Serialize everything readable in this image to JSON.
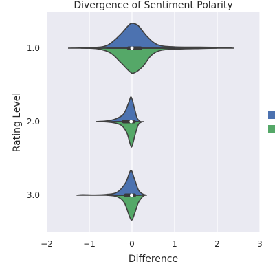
{
  "chart_data": {
    "type": "violin",
    "orientation": "horizontal",
    "split": true,
    "title": "Divergence of Sentiment Polarity",
    "xlabel": "Difference",
    "ylabel": "Rating Level",
    "xlim": [
      -2,
      3
    ],
    "xticks": [
      "−2",
      "−1",
      "0",
      "1",
      "2",
      "3"
    ],
    "categories": [
      "1.0",
      "2.0",
      "3.0"
    ],
    "grid": true,
    "legend": {
      "placement": "right",
      "entries": [
        "",
        ""
      ]
    },
    "series_colors": [
      "#4c72b0",
      "#55a868"
    ],
    "violins": [
      {
        "category": "1.0",
        "upper": {
          "color": "#4c72b0",
          "range": [
            -1.5,
            2.4
          ],
          "profile": [
            [
              -1.5,
              0.0
            ],
            [
              -1.0,
              0.02
            ],
            [
              -0.6,
              0.1
            ],
            [
              -0.3,
              0.5
            ],
            [
              -0.1,
              0.88
            ],
            [
              0.0,
              1.0
            ],
            [
              0.15,
              0.9
            ],
            [
              0.35,
              0.48
            ],
            [
              0.6,
              0.14
            ],
            [
              1.0,
              0.05
            ],
            [
              1.6,
              0.04
            ],
            [
              2.0,
              0.03
            ],
            [
              2.4,
              0.0
            ]
          ]
        },
        "lower": {
          "color": "#55a868",
          "range": [
            -1.2,
            2.0
          ],
          "profile": [
            [
              -1.2,
              0.0
            ],
            [
              -0.8,
              0.03
            ],
            [
              -0.5,
              0.2
            ],
            [
              -0.25,
              0.6
            ],
            [
              -0.05,
              0.95
            ],
            [
              0.05,
              1.0
            ],
            [
              0.25,
              0.75
            ],
            [
              0.45,
              0.3
            ],
            [
              0.7,
              0.08
            ],
            [
              1.2,
              0.03
            ],
            [
              1.6,
              0.015
            ],
            [
              2.0,
              0.0
            ]
          ]
        },
        "box": {
          "q1": -0.08,
          "median": 0.0,
          "q3": 0.2,
          "whisker_low": -0.6,
          "whisker_high": 1.0
        }
      },
      {
        "category": "2.0",
        "upper": {
          "color": "#4c72b0",
          "range": [
            -0.85,
            0.2
          ],
          "profile": [
            [
              -0.85,
              0.0
            ],
            [
              -0.6,
              0.03
            ],
            [
              -0.4,
              0.1
            ],
            [
              -0.2,
              0.3
            ],
            [
              -0.08,
              0.75
            ],
            [
              -0.02,
              1.0
            ],
            [
              0.05,
              0.6
            ],
            [
              0.12,
              0.15
            ],
            [
              0.2,
              0.0
            ]
          ]
        },
        "lower": {
          "color": "#55a868",
          "range": [
            -0.7,
            0.25
          ],
          "profile": [
            [
              -0.7,
              0.0
            ],
            [
              -0.45,
              0.04
            ],
            [
              -0.25,
              0.15
            ],
            [
              -0.12,
              0.45
            ],
            [
              -0.04,
              0.92
            ],
            [
              0.0,
              1.0
            ],
            [
              0.07,
              0.55
            ],
            [
              0.15,
              0.12
            ],
            [
              0.25,
              0.0
            ]
          ]
        },
        "box": {
          "q1": -0.2,
          "median": -0.02,
          "q3": 0.05,
          "whisker_low": -0.45,
          "whisker_high": 0.15
        }
      },
      {
        "category": "3.0",
        "upper": {
          "color": "#4c72b0",
          "range": [
            -1.3,
            0.35
          ],
          "profile": [
            [
              -1.3,
              0.0
            ],
            [
              -1.15,
              0.02
            ],
            [
              -0.9,
              0.01
            ],
            [
              -0.6,
              0.03
            ],
            [
              -0.35,
              0.12
            ],
            [
              -0.15,
              0.5
            ],
            [
              -0.03,
              1.0
            ],
            [
              0.05,
              0.7
            ],
            [
              0.15,
              0.22
            ],
            [
              0.25,
              0.05
            ],
            [
              0.35,
              0.0
            ]
          ]
        },
        "lower": {
          "color": "#55a868",
          "range": [
            -0.6,
            0.3
          ],
          "profile": [
            [
              -0.6,
              0.0
            ],
            [
              -0.35,
              0.06
            ],
            [
              -0.18,
              0.3
            ],
            [
              -0.06,
              0.85
            ],
            [
              0.0,
              1.0
            ],
            [
              0.07,
              0.7
            ],
            [
              0.15,
              0.3
            ],
            [
              0.25,
              0.06
            ],
            [
              0.3,
              0.0
            ]
          ]
        },
        "box": {
          "q1": -0.15,
          "median": -0.01,
          "q3": 0.06,
          "whisker_low": -0.4,
          "whisker_high": 0.2
        }
      }
    ]
  }
}
